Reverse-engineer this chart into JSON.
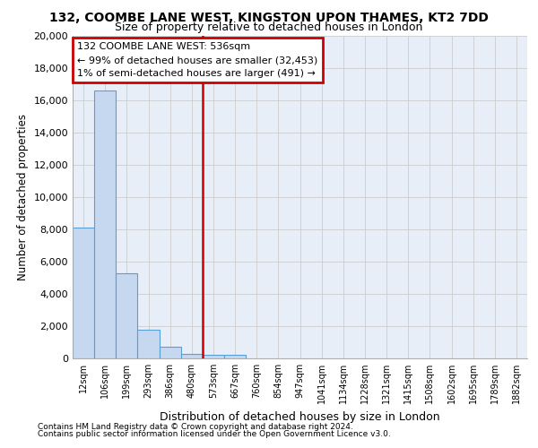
{
  "title1": "132, COOMBE LANE WEST, KINGSTON UPON THAMES, KT2 7DD",
  "title2": "Size of property relative to detached houses in London",
  "xlabel": "Distribution of detached houses by size in London",
  "ylabel": "Number of detached properties",
  "categories": [
    "12sqm",
    "106sqm",
    "199sqm",
    "293sqm",
    "386sqm",
    "480sqm",
    "573sqm",
    "667sqm",
    "760sqm",
    "854sqm",
    "947sqm",
    "1041sqm",
    "1134sqm",
    "1228sqm",
    "1321sqm",
    "1415sqm",
    "1508sqm",
    "1602sqm",
    "1695sqm",
    "1789sqm",
    "1882sqm"
  ],
  "values": [
    8100,
    16600,
    5300,
    1800,
    750,
    300,
    200,
    200,
    0,
    0,
    0,
    0,
    0,
    0,
    0,
    0,
    0,
    0,
    0,
    0,
    0
  ],
  "bar_color": "#c5d8f0",
  "bar_edge_color": "#5a9fd4",
  "property_line_x": 6,
  "annotation_text1": "132 COOMBE LANE WEST: 536sqm",
  "annotation_text2": "← 99% of detached houses are smaller (32,453)",
  "annotation_text3": "1% of semi-detached houses are larger (491) →",
  "annotation_box_color": "#ffffff",
  "annotation_box_edge": "#cc0000",
  "vline_color": "#cc0000",
  "ylim": [
    0,
    20000
  ],
  "yticks": [
    0,
    2000,
    4000,
    6000,
    8000,
    10000,
    12000,
    14000,
    16000,
    18000,
    20000
  ],
  "grid_color": "#cccccc",
  "bg_color": "#e8eef8",
  "footer1": "Contains HM Land Registry data © Crown copyright and database right 2024.",
  "footer2": "Contains public sector information licensed under the Open Government Licence v3.0."
}
